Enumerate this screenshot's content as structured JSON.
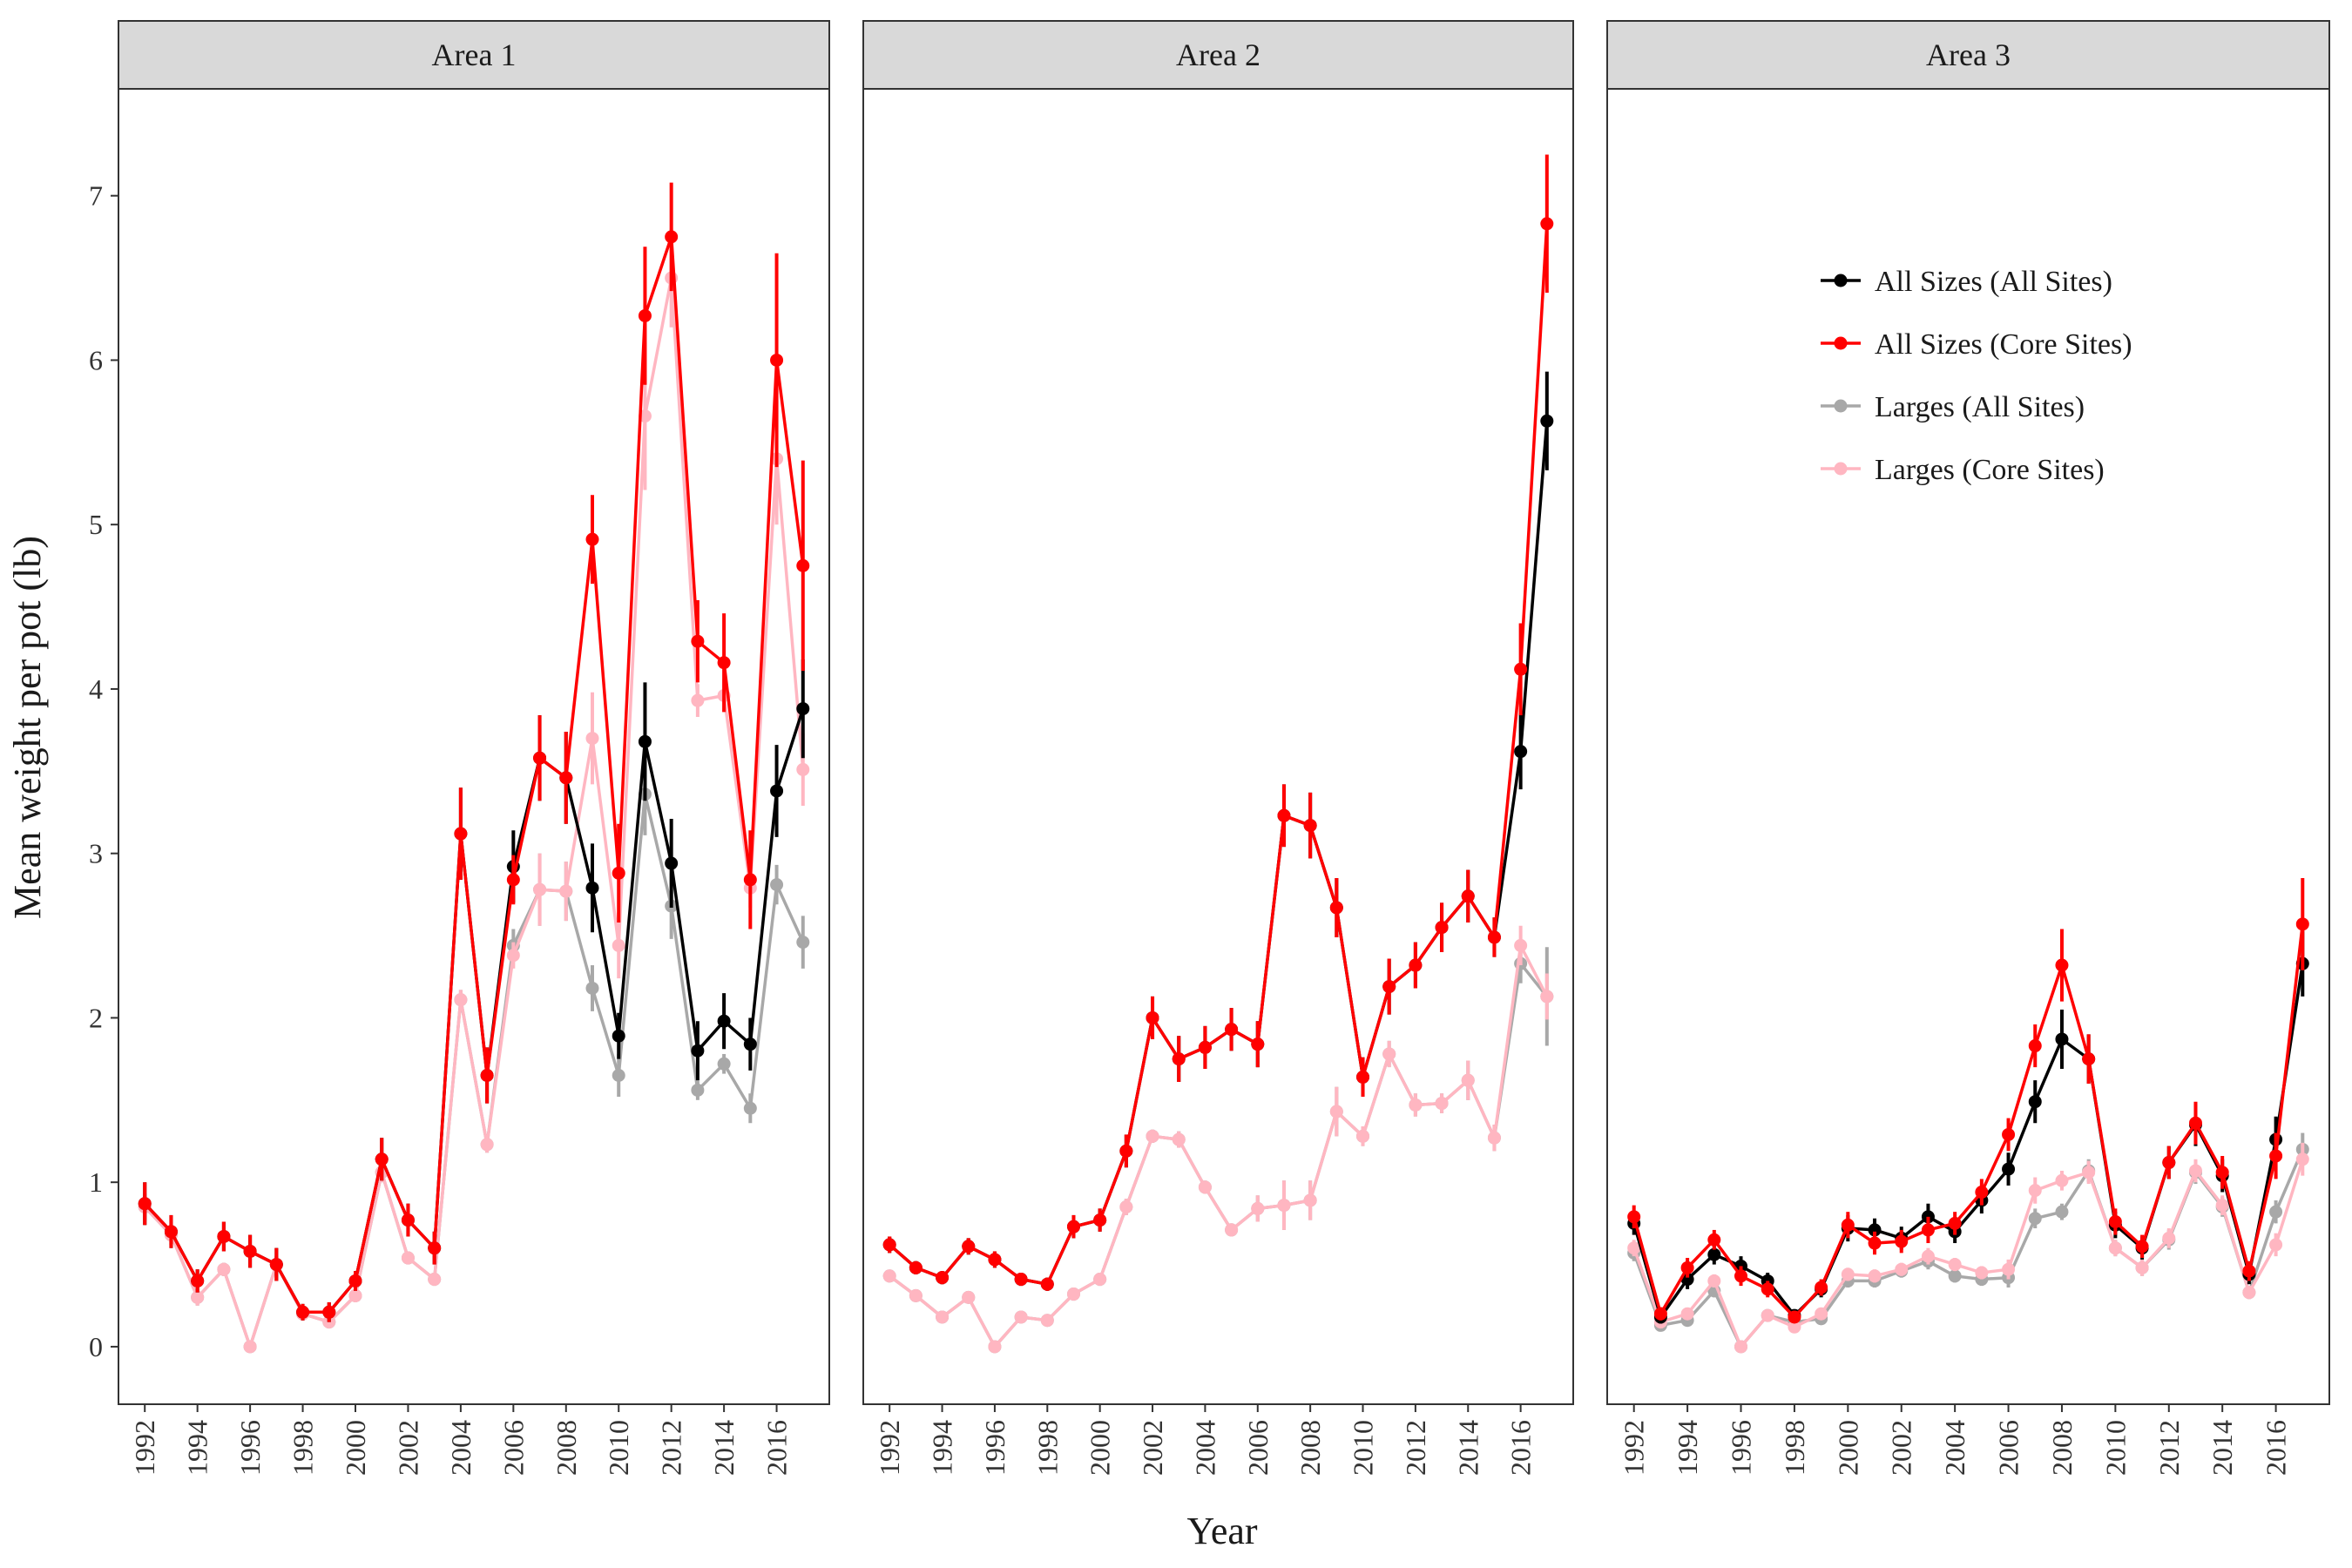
{
  "chart_data": {
    "type": "line",
    "xlabel": "Year",
    "ylabel": "Mean weight per pot (lb)",
    "xlim": [
      1991,
      2018
    ],
    "ylim": [
      -0.35,
      7.65
    ],
    "x_ticks": [
      1992,
      1994,
      1996,
      1998,
      2000,
      2002,
      2004,
      2006,
      2008,
      2010,
      2012,
      2014,
      2016
    ],
    "y_ticks": [
      0,
      1,
      2,
      3,
      4,
      5,
      6,
      7
    ],
    "grid": false,
    "legend_position": "top-right",
    "legend_panel": "Area 3",
    "series_styles": [
      {
        "name": "All Sizes (All Sites)",
        "color": "#000000"
      },
      {
        "name": "All Sizes (Core Sites)",
        "color": "#ff0000"
      },
      {
        "name": "Larges (All Sites)",
        "color": "#a8a8a8"
      },
      {
        "name": "Larges (Core Sites)",
        "color": "#ffb6c1"
      }
    ],
    "draw_order": [
      "Larges (All Sites)",
      "Larges (Core Sites)",
      "All Sizes (All Sites)",
      "All Sizes (Core Sites)"
    ],
    "panels": [
      {
        "title": "Area 1",
        "x": [
          1992,
          1993,
          1994,
          1995,
          1996,
          1997,
          1998,
          1999,
          2000,
          2001,
          2002,
          2003,
          2004,
          2005,
          2006,
          2007,
          2008,
          2009,
          2010,
          2011,
          2012,
          2013,
          2014,
          2015,
          2016,
          2017
        ],
        "series": [
          {
            "name": "All Sizes (All Sites)",
            "values": [
              0.87,
              0.7,
              0.4,
              0.67,
              0.58,
              0.5,
              0.21,
              0.21,
              0.4,
              1.14,
              0.77,
              0.6,
              3.12,
              1.65,
              2.92,
              3.58,
              3.46,
              2.79,
              1.89,
              3.68,
              2.94,
              1.8,
              1.98,
              1.84,
              3.38,
              3.88
            ],
            "err": [
              0.13,
              0.1,
              0.07,
              0.09,
              0.1,
              0.1,
              0.05,
              0.06,
              0.06,
              0.13,
              0.1,
              0.1,
              0.28,
              0.17,
              0.22,
              0.26,
              0.28,
              0.27,
              0.14,
              0.36,
              0.27,
              0.18,
              0.17,
              0.16,
              0.28,
              0.3
            ]
          },
          {
            "name": "All Sizes (Core Sites)",
            "values": [
              0.87,
              0.7,
              0.4,
              0.67,
              0.58,
              0.5,
              0.21,
              0.21,
              0.4,
              1.14,
              0.77,
              0.6,
              3.12,
              1.65,
              2.84,
              3.58,
              3.46,
              4.91,
              2.88,
              6.27,
              6.75,
              4.29,
              4.16,
              2.84,
              6.0,
              4.75
            ],
            "err": [
              0.13,
              0.1,
              0.07,
              0.09,
              0.1,
              0.1,
              0.05,
              0.06,
              0.06,
              0.13,
              0.1,
              0.1,
              0.28,
              0.17,
              0.15,
              0.26,
              0.28,
              0.27,
              0.3,
              0.42,
              0.33,
              0.25,
              0.3,
              0.3,
              0.65,
              0.64
            ]
          },
          {
            "name": "Larges (All Sites)",
            "values": [
              0.85,
              0.68,
              0.3,
              0.47,
              0.0,
              0.5,
              0.2,
              0.15,
              0.31,
              1.06,
              0.54,
              0.41,
              2.11,
              1.23,
              2.44,
              2.78,
              2.77,
              2.18,
              1.65,
              3.36,
              2.68,
              1.56,
              1.72,
              1.45,
              2.81,
              2.46
            ],
            "err": [
              0.08,
              0.06,
              0.05,
              0.04,
              0.02,
              0.05,
              0.03,
              0.03,
              0.04,
              0.06,
              0.04,
              0.04,
              0.06,
              0.05,
              0.1,
              0.22,
              0.18,
              0.14,
              0.13,
              0.25,
              0.2,
              0.06,
              0.06,
              0.09,
              0.12,
              0.16
            ]
          },
          {
            "name": "Larges (Core Sites)",
            "values": [
              0.85,
              0.68,
              0.3,
              0.47,
              0.0,
              0.5,
              0.2,
              0.15,
              0.31,
              1.06,
              0.54,
              0.41,
              2.11,
              1.23,
              2.38,
              2.78,
              2.77,
              3.7,
              2.44,
              5.66,
              6.5,
              3.93,
              3.96,
              2.79,
              5.4,
              3.51
            ],
            "err": [
              0.08,
              0.06,
              0.05,
              0.04,
              0.02,
              0.05,
              0.03,
              0.03,
              0.04,
              0.06,
              0.04,
              0.04,
              0.06,
              0.05,
              0.08,
              0.22,
              0.18,
              0.28,
              0.2,
              0.45,
              0.3,
              0.1,
              0.1,
              0.12,
              0.4,
              0.22
            ]
          }
        ]
      },
      {
        "title": "Area 2",
        "x": [
          1992,
          1993,
          1994,
          1995,
          1996,
          1997,
          1998,
          1999,
          2000,
          2001,
          2002,
          2003,
          2004,
          2005,
          2006,
          2007,
          2008,
          2009,
          2010,
          2011,
          2012,
          2013,
          2014,
          2015,
          2016,
          2017
        ],
        "series": [
          {
            "name": "All Sizes (All Sites)",
            "values": [
              0.62,
              0.48,
              0.42,
              0.61,
              0.53,
              0.41,
              0.38,
              0.73,
              0.77,
              1.19,
              2.0,
              1.75,
              1.82,
              1.93,
              1.84,
              3.23,
              3.17,
              2.67,
              1.64,
              2.19,
              2.32,
              2.55,
              2.74,
              2.49,
              3.62,
              5.63
            ],
            "err": [
              0.05,
              0.04,
              0.04,
              0.05,
              0.05,
              0.04,
              0.04,
              0.07,
              0.07,
              0.1,
              0.13,
              0.14,
              0.13,
              0.13,
              0.14,
              0.19,
              0.2,
              0.18,
              0.12,
              0.17,
              0.14,
              0.15,
              0.16,
              0.12,
              0.23,
              0.3
            ]
          },
          {
            "name": "All Sizes (Core Sites)",
            "values": [
              0.62,
              0.48,
              0.42,
              0.61,
              0.53,
              0.41,
              0.38,
              0.73,
              0.77,
              1.19,
              2.0,
              1.75,
              1.82,
              1.93,
              1.84,
              3.23,
              3.17,
              2.67,
              1.64,
              2.19,
              2.32,
              2.55,
              2.74,
              2.49,
              4.12,
              6.83
            ],
            "err": [
              0.05,
              0.04,
              0.04,
              0.05,
              0.05,
              0.04,
              0.04,
              0.07,
              0.07,
              0.1,
              0.13,
              0.14,
              0.13,
              0.13,
              0.14,
              0.19,
              0.2,
              0.18,
              0.12,
              0.17,
              0.14,
              0.15,
              0.16,
              0.12,
              0.28,
              0.42
            ]
          },
          {
            "name": "Larges (All Sites)",
            "values": [
              0.43,
              0.31,
              0.18,
              0.3,
              0.0,
              0.18,
              0.16,
              0.32,
              0.41,
              0.85,
              1.28,
              1.26,
              0.97,
              0.71,
              0.84,
              0.86,
              0.89,
              1.43,
              1.28,
              1.78,
              1.47,
              1.48,
              1.62,
              1.27,
              2.33,
              2.13
            ],
            "err": [
              0.03,
              0.03,
              0.02,
              0.03,
              0.01,
              0.02,
              0.02,
              0.04,
              0.04,
              0.05,
              0.04,
              0.05,
              0.04,
              0.04,
              0.08,
              0.15,
              0.12,
              0.15,
              0.06,
              0.08,
              0.07,
              0.06,
              0.12,
              0.08,
              0.12,
              0.3
            ]
          },
          {
            "name": "Larges (Core Sites)",
            "values": [
              0.43,
              0.31,
              0.18,
              0.3,
              0.0,
              0.18,
              0.16,
              0.32,
              0.41,
              0.85,
              1.28,
              1.26,
              0.97,
              0.71,
              0.84,
              0.86,
              0.89,
              1.43,
              1.28,
              1.78,
              1.47,
              1.48,
              1.62,
              1.27,
              2.44,
              2.13
            ],
            "err": [
              0.03,
              0.03,
              0.02,
              0.03,
              0.01,
              0.02,
              0.02,
              0.04,
              0.04,
              0.05,
              0.04,
              0.05,
              0.04,
              0.04,
              0.08,
              0.15,
              0.12,
              0.15,
              0.06,
              0.08,
              0.07,
              0.06,
              0.12,
              0.08,
              0.12,
              0.14
            ]
          }
        ]
      },
      {
        "title": "Area 3",
        "x": [
          1992,
          1993,
          1994,
          1995,
          1996,
          1997,
          1998,
          1999,
          2000,
          2001,
          2002,
          2003,
          2004,
          2005,
          2006,
          2007,
          2008,
          2009,
          2010,
          2011,
          2012,
          2013,
          2014,
          2015,
          2016,
          2017
        ],
        "series": [
          {
            "name": "All Sizes (All Sites)",
            "values": [
              0.75,
              0.18,
              0.41,
              0.56,
              0.49,
              0.4,
              0.19,
              0.35,
              0.72,
              0.71,
              0.66,
              0.79,
              0.7,
              0.89,
              1.08,
              1.49,
              1.87,
              1.75,
              0.74,
              0.6,
              1.12,
              1.35,
              1.04,
              0.44,
              1.26,
              2.33
            ],
            "err": [
              0.07,
              0.04,
              0.06,
              0.06,
              0.06,
              0.05,
              0.03,
              0.05,
              0.08,
              0.07,
              0.07,
              0.08,
              0.07,
              0.08,
              0.1,
              0.13,
              0.18,
              0.15,
              0.08,
              0.07,
              0.1,
              0.13,
              0.1,
              0.06,
              0.14,
              0.2
            ]
          },
          {
            "name": "All Sizes (Core Sites)",
            "values": [
              0.79,
              0.2,
              0.48,
              0.65,
              0.43,
              0.35,
              0.18,
              0.36,
              0.74,
              0.63,
              0.64,
              0.71,
              0.75,
              0.94,
              1.29,
              1.83,
              2.32,
              1.75,
              0.76,
              0.61,
              1.12,
              1.36,
              1.06,
              0.46,
              1.16,
              2.57
            ],
            "err": [
              0.07,
              0.04,
              0.06,
              0.06,
              0.06,
              0.05,
              0.03,
              0.05,
              0.08,
              0.07,
              0.07,
              0.08,
              0.07,
              0.08,
              0.1,
              0.13,
              0.22,
              0.15,
              0.08,
              0.07,
              0.1,
              0.13,
              0.1,
              0.06,
              0.14,
              0.28
            ]
          },
          {
            "name": "Larges (All Sites)",
            "values": [
              0.57,
              0.13,
              0.16,
              0.34,
              0.0,
              0.19,
              0.15,
              0.17,
              0.4,
              0.4,
              0.46,
              0.52,
              0.43,
              0.41,
              0.42,
              0.78,
              0.82,
              1.07,
              0.6,
              0.48,
              0.65,
              1.06,
              0.85,
              0.33,
              0.82,
              1.2
            ],
            "err": [
              0.05,
              0.02,
              0.03,
              0.04,
              0.01,
              0.02,
              0.02,
              0.03,
              0.04,
              0.04,
              0.04,
              0.05,
              0.04,
              0.04,
              0.06,
              0.06,
              0.05,
              0.07,
              0.05,
              0.05,
              0.06,
              0.07,
              0.06,
              0.04,
              0.07,
              0.1
            ]
          },
          {
            "name": "Larges (Core Sites)",
            "values": [
              0.6,
              0.15,
              0.2,
              0.4,
              0.0,
              0.19,
              0.12,
              0.2,
              0.44,
              0.43,
              0.47,
              0.55,
              0.5,
              0.45,
              0.47,
              0.95,
              1.01,
              1.06,
              0.6,
              0.48,
              0.66,
              1.07,
              0.86,
              0.33,
              0.62,
              1.14
            ],
            "err": [
              0.05,
              0.02,
              0.03,
              0.04,
              0.01,
              0.02,
              0.02,
              0.03,
              0.04,
              0.04,
              0.04,
              0.05,
              0.04,
              0.04,
              0.06,
              0.08,
              0.06,
              0.07,
              0.05,
              0.05,
              0.06,
              0.07,
              0.06,
              0.04,
              0.07,
              0.1
            ]
          }
        ]
      }
    ]
  }
}
